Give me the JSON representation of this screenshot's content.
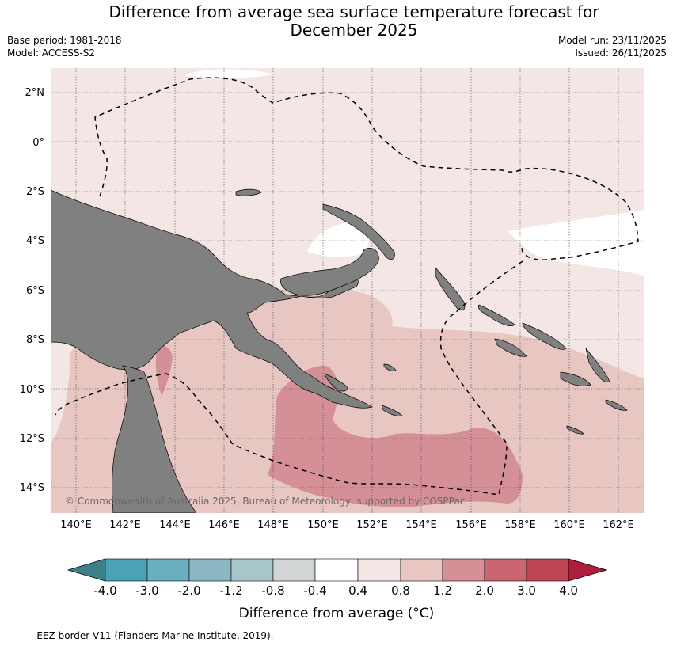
{
  "title_line1": "Difference from average sea surface temperature forecast for",
  "title_line2": "December 2025",
  "base_period": "Base period: 1981-2018",
  "model": "Model: ACCESS-S2",
  "model_run": "Model run: 23/11/2025",
  "issued": "Issued: 26/11/2025",
  "copyright": "© Commonwealth of Australia 2025, Bureau of Meteorology, supported by COSPPac",
  "lat_labels": [
    "2°N",
    "0°",
    "2°S",
    "4°S",
    "6°S",
    "8°S",
    "10°S",
    "12°S",
    "14°S"
  ],
  "lon_labels": [
    "140°E",
    "142°E",
    "144°E",
    "146°E",
    "148°E",
    "150°E",
    "152°E",
    "154°E",
    "156°E",
    "158°E",
    "160°E",
    "162°E"
  ],
  "colorbar": {
    "title": "Difference from average (°C)",
    "ticks": [
      "-4.0",
      "-3.0",
      "-2.0",
      "-1.2",
      "-0.8",
      "-0.4",
      "0.4",
      "0.8",
      "1.2",
      "2.0",
      "3.0",
      "4.0"
    ],
    "colors": [
      "#3d7f8b",
      "#4aa3b5",
      "#6aafbf",
      "#8ab7c2",
      "#a8c6ca",
      "#d2d5d6",
      "#ffffff",
      "#f4e6e4",
      "#e8c6c2",
      "#d48f97",
      "#c9666f",
      "#be4554",
      "#ae1d3b"
    ]
  },
  "footer": "--  --  -- EEZ border V11 (Flanders Marine Institute, 2019).",
  "colors": {
    "land": "#808080",
    "band_0_4_0_8": "#f4e6e4",
    "band_0_8_1_2": "#e8c6c2",
    "band_1_2_2_0": "#d48f97",
    "neutral": "#ffffff"
  }
}
